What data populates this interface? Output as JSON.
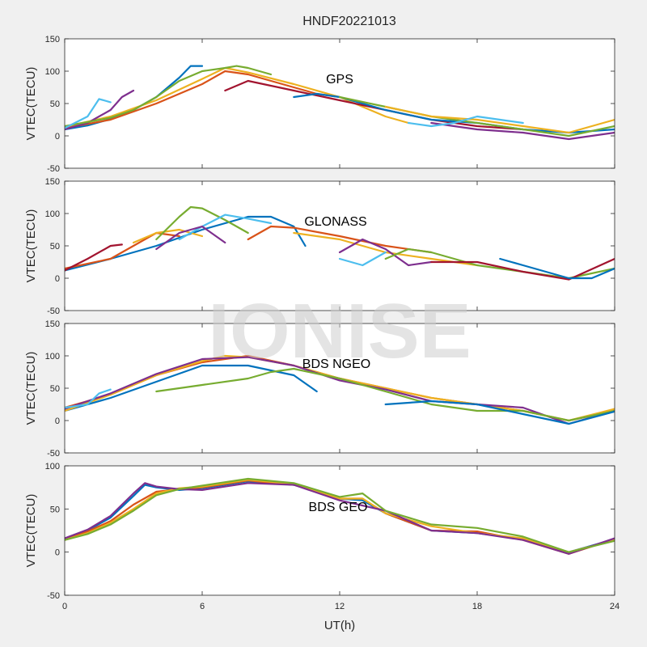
{
  "figure": {
    "title": "HNDF20221013",
    "xlabel": "UT(h)",
    "watermark": "IONISE"
  },
  "chart_data": [
    {
      "type": "line",
      "annotation": "GPS",
      "ylabel": "VTEC(TECU)",
      "xlim": [
        0,
        24
      ],
      "ylim": [
        -50,
        150
      ],
      "xticks": [
        0,
        6,
        12,
        18,
        24
      ],
      "yticks": [
        -50,
        0,
        50,
        100,
        150
      ],
      "show_xtick_labels": false,
      "series": [
        {
          "color": "#0072BD",
          "x": [
            0,
            1,
            2,
            3,
            4,
            5,
            5.5,
            6
          ],
          "y": [
            10,
            16,
            26,
            40,
            60,
            90,
            108,
            108
          ]
        },
        {
          "color": "#D95319",
          "x": [
            0,
            2,
            4,
            6,
            7,
            8,
            9,
            10,
            11,
            12
          ],
          "y": [
            12,
            25,
            50,
            80,
            100,
            95,
            85,
            75,
            65,
            60
          ]
        },
        {
          "color": "#EDB120",
          "x": [
            0,
            2,
            4,
            6,
            7,
            8,
            10,
            12,
            13,
            14,
            15
          ],
          "y": [
            14,
            30,
            55,
            88,
            105,
            98,
            80,
            60,
            45,
            30,
            20
          ]
        },
        {
          "color": "#7E2F8E",
          "x": [
            0,
            1,
            2,
            2.5,
            3
          ],
          "y": [
            10,
            20,
            40,
            60,
            70
          ]
        },
        {
          "color": "#77AC30",
          "x": [
            0,
            2,
            3,
            4,
            5,
            6,
            7,
            7.5,
            8,
            9
          ],
          "y": [
            15,
            28,
            40,
            60,
            85,
            100,
            105,
            108,
            105,
            95
          ]
        },
        {
          "color": "#4DBEEE",
          "x": [
            0,
            1,
            1.5,
            2
          ],
          "y": [
            12,
            30,
            57,
            52
          ]
        },
        {
          "color": "#A2142F",
          "x": [
            7,
            8,
            10,
            12,
            14,
            16,
            18,
            20
          ],
          "y": [
            70,
            85,
            70,
            55,
            40,
            25,
            15,
            10
          ]
        },
        {
          "color": "#0072BD",
          "x": [
            10,
            11,
            12,
            13,
            14,
            16,
            18,
            20,
            22,
            24
          ],
          "y": [
            60,
            65,
            60,
            50,
            40,
            25,
            20,
            10,
            5,
            10
          ]
        },
        {
          "color": "#77AC30",
          "x": [
            12,
            14,
            16,
            18,
            20,
            22,
            24
          ],
          "y": [
            60,
            45,
            30,
            20,
            10,
            0,
            15
          ]
        },
        {
          "color": "#EDB120",
          "x": [
            14,
            16,
            18,
            20,
            22,
            24
          ],
          "y": [
            45,
            30,
            25,
            15,
            5,
            25
          ]
        },
        {
          "color": "#7E2F8E",
          "x": [
            16,
            18,
            20,
            22,
            24
          ],
          "y": [
            20,
            10,
            5,
            -5,
            5
          ]
        },
        {
          "color": "#4DBEEE",
          "x": [
            15,
            16,
            17,
            18,
            19,
            20
          ],
          "y": [
            20,
            15,
            20,
            30,
            25,
            20
          ]
        }
      ]
    },
    {
      "type": "line",
      "annotation": "GLONASS",
      "ylabel": "VTEC(TECU)",
      "xlim": [
        0,
        24
      ],
      "ylim": [
        -50,
        150
      ],
      "xticks": [
        0,
        6,
        12,
        18,
        24
      ],
      "yticks": [
        -50,
        0,
        50,
        100,
        150
      ],
      "show_xtick_labels": false,
      "series": [
        {
          "color": "#0072BD",
          "x": [
            0,
            2,
            4,
            6,
            8,
            9,
            10,
            10.5
          ],
          "y": [
            12,
            30,
            50,
            75,
            95,
            95,
            80,
            50
          ]
        },
        {
          "color": "#D95319",
          "x": [
            0,
            2,
            3,
            4,
            5
          ],
          "y": [
            15,
            30,
            50,
            70,
            65
          ]
        },
        {
          "color": "#EDB120",
          "x": [
            3,
            4,
            5,
            6
          ],
          "y": [
            55,
            70,
            75,
            65
          ]
        },
        {
          "color": "#77AC30",
          "x": [
            4,
            5,
            5.5,
            6,
            7,
            8
          ],
          "y": [
            60,
            95,
            110,
            108,
            90,
            70
          ]
        },
        {
          "color": "#4DBEEE",
          "x": [
            5,
            6,
            7,
            8,
            9
          ],
          "y": [
            60,
            80,
            98,
            92,
            85
          ]
        },
        {
          "color": "#A2142F",
          "x": [
            0,
            1,
            2,
            2.5
          ],
          "y": [
            12,
            30,
            50,
            52
          ]
        },
        {
          "color": "#7E2F8E",
          "x": [
            4,
            5,
            6,
            7
          ],
          "y": [
            45,
            70,
            80,
            55
          ]
        },
        {
          "color": "#D95319",
          "x": [
            8,
            9,
            10,
            12,
            14,
            16
          ],
          "y": [
            60,
            80,
            78,
            65,
            50,
            40
          ]
        },
        {
          "color": "#EDB120",
          "x": [
            10,
            12,
            14,
            16,
            18
          ],
          "y": [
            70,
            60,
            40,
            30,
            20
          ]
        },
        {
          "color": "#7E2F8E",
          "x": [
            12,
            13,
            14,
            15,
            16
          ],
          "y": [
            40,
            60,
            45,
            20,
            25
          ]
        },
        {
          "color": "#77AC30",
          "x": [
            14,
            15,
            16,
            18,
            20,
            22,
            24
          ],
          "y": [
            30,
            45,
            40,
            20,
            10,
            0,
            15
          ]
        },
        {
          "color": "#A2142F",
          "x": [
            16,
            18,
            20,
            22,
            24
          ],
          "y": [
            25,
            25,
            10,
            -2,
            30
          ]
        },
        {
          "color": "#0072BD",
          "x": [
            19,
            20,
            21,
            22,
            23,
            24
          ],
          "y": [
            30,
            20,
            10,
            0,
            0,
            15
          ]
        },
        {
          "color": "#4DBEEE",
          "x": [
            12,
            13,
            14
          ],
          "y": [
            30,
            20,
            40
          ]
        }
      ]
    },
    {
      "type": "line",
      "annotation": "BDS NGEO",
      "ylabel": "VTEC(TECU)",
      "xlim": [
        0,
        24
      ],
      "ylim": [
        -50,
        150
      ],
      "xticks": [
        0,
        6,
        12,
        18,
        24
      ],
      "yticks": [
        -50,
        0,
        50,
        100,
        150
      ],
      "show_xtick_labels": false,
      "series": [
        {
          "color": "#0072BD",
          "x": [
            0,
            2,
            4,
            6,
            8,
            10,
            11
          ],
          "y": [
            15,
            35,
            60,
            85,
            85,
            70,
            45
          ]
        },
        {
          "color": "#D95319",
          "x": [
            0,
            2,
            4,
            6,
            8,
            10,
            12,
            14,
            16,
            18,
            20,
            22,
            24
          ],
          "y": [
            20,
            40,
            70,
            90,
            100,
            85,
            65,
            50,
            35,
            25,
            15,
            0,
            15
          ]
        },
        {
          "color": "#EDB120",
          "x": [
            0,
            2,
            4,
            6,
            7,
            8,
            10,
            12,
            14,
            16,
            18,
            20,
            22,
            24
          ],
          "y": [
            15,
            40,
            70,
            92,
            100,
            98,
            85,
            65,
            50,
            35,
            25,
            15,
            0,
            18
          ]
        },
        {
          "color": "#7E2F8E",
          "x": [
            0,
            2,
            4,
            6,
            8,
            10,
            12,
            14,
            16,
            18,
            20,
            22,
            24
          ],
          "y": [
            18,
            42,
            72,
            95,
            98,
            85,
            62,
            48,
            30,
            25,
            20,
            -5,
            15
          ]
        },
        {
          "color": "#77AC30",
          "x": [
            4,
            6,
            8,
            9,
            10,
            12,
            14,
            16,
            18,
            20,
            22,
            24
          ],
          "y": [
            45,
            55,
            65,
            75,
            80,
            65,
            45,
            25,
            15,
            15,
            0,
            15
          ]
        },
        {
          "color": "#4DBEEE",
          "x": [
            0,
            1,
            1.5,
            2
          ],
          "y": [
            20,
            25,
            42,
            48
          ]
        },
        {
          "color": "#0072BD",
          "x": [
            14,
            16,
            18,
            20,
            22,
            24
          ],
          "y": [
            25,
            30,
            25,
            10,
            -5,
            14
          ]
        }
      ]
    },
    {
      "type": "line",
      "annotation": "BDS GEO",
      "ylabel": "VTEC(TECU)",
      "xlim": [
        0,
        24
      ],
      "ylim": [
        -50,
        100
      ],
      "xticks": [
        0,
        6,
        12,
        18,
        24
      ],
      "yticks": [
        -50,
        0,
        50,
        100
      ],
      "show_xtick_labels": true,
      "series": [
        {
          "color": "#0072BD",
          "x": [
            0,
            1,
            2,
            3,
            3.5,
            4,
            5,
            6,
            8,
            10,
            12,
            13,
            14,
            16,
            18,
            20,
            22,
            24
          ],
          "y": [
            15,
            25,
            40,
            65,
            78,
            75,
            72,
            74,
            82,
            78,
            62,
            60,
            45,
            25,
            22,
            15,
            0,
            15
          ]
        },
        {
          "color": "#D95319",
          "x": [
            0,
            1,
            2,
            3,
            4,
            5,
            6,
            8,
            10,
            12,
            13,
            14,
            16,
            18,
            20,
            22,
            24
          ],
          "y": [
            15,
            24,
            36,
            55,
            70,
            73,
            75,
            83,
            78,
            62,
            62,
            45,
            25,
            24,
            14,
            -2,
            15
          ]
        },
        {
          "color": "#EDB120",
          "x": [
            0,
            1,
            2,
            3,
            4,
            5,
            6,
            8,
            10,
            12,
            13,
            14,
            16,
            18,
            20,
            22,
            24
          ],
          "y": [
            14,
            22,
            34,
            50,
            68,
            74,
            76,
            84,
            79,
            62,
            62,
            45,
            30,
            22,
            16,
            0,
            14
          ]
        },
        {
          "color": "#7E2F8E",
          "x": [
            0,
            1,
            2,
            3,
            3.5,
            4,
            5,
            6,
            8,
            10,
            12,
            14,
            16,
            18,
            20,
            22,
            24
          ],
          "y": [
            16,
            26,
            42,
            68,
            80,
            76,
            73,
            72,
            80,
            78,
            60,
            48,
            25,
            22,
            14,
            -2,
            16
          ]
        },
        {
          "color": "#77AC30",
          "x": [
            0,
            1,
            2,
            3,
            4,
            5,
            6,
            8,
            10,
            12,
            13,
            14,
            16,
            18,
            20,
            22,
            24
          ],
          "y": [
            14,
            21,
            32,
            48,
            66,
            73,
            77,
            85,
            80,
            64,
            68,
            48,
            32,
            28,
            18,
            0,
            13
          ]
        }
      ]
    }
  ]
}
